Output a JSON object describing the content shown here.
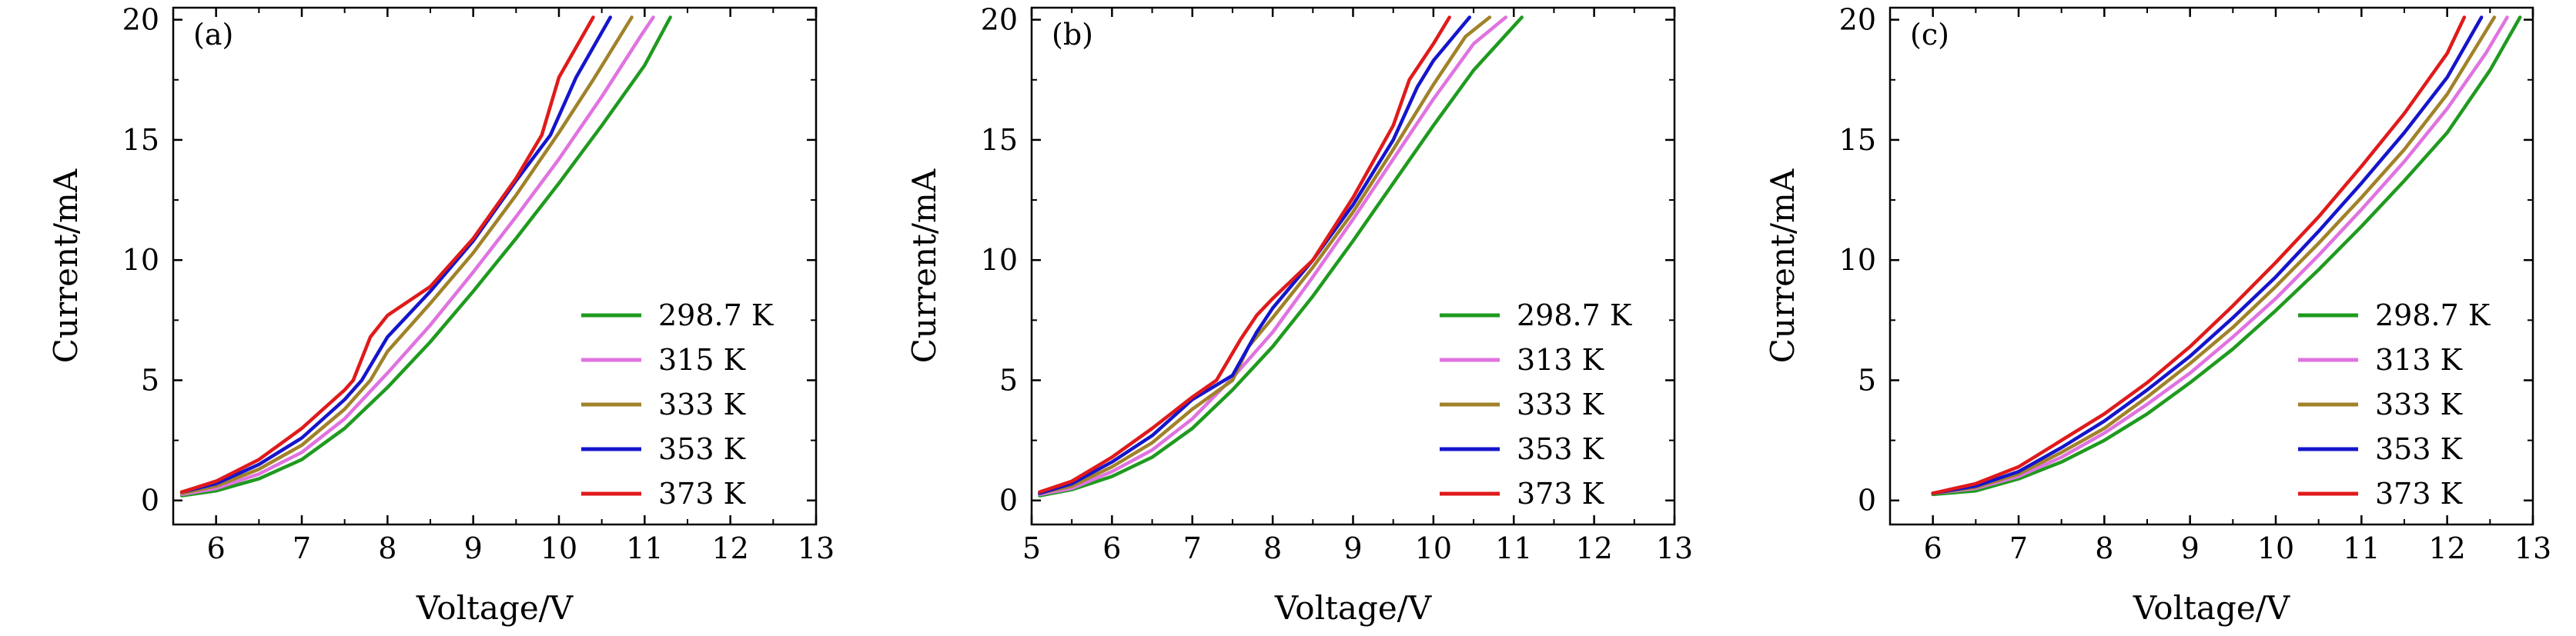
{
  "chart_data": [
    {
      "type": "line",
      "panel_label": "(a)",
      "xlabel": "Voltage/V",
      "ylabel": "Current/mA",
      "xlim": [
        5.5,
        13
      ],
      "ylim": [
        -1,
        20.5
      ],
      "xticks": [
        "6",
        "7",
        "8",
        "9",
        "10",
        "11",
        "12",
        "13"
      ],
      "yticks": [
        "0",
        "5",
        "10",
        "15",
        "20"
      ],
      "legend_position": "lower-right",
      "series": [
        {
          "name": "298.7 K",
          "color": "#1f9a1f",
          "x": [
            5.6,
            6.0,
            6.5,
            7.0,
            7.5,
            8.0,
            8.5,
            9.0,
            9.5,
            10.0,
            10.5,
            11.0,
            11.3
          ],
          "y": [
            0.2,
            0.4,
            0.9,
            1.7,
            3.0,
            4.7,
            6.6,
            8.7,
            10.9,
            13.2,
            15.6,
            18.1,
            20.1
          ]
        },
        {
          "name": "315 K",
          "color": "#e073e0",
          "x": [
            5.6,
            6.0,
            6.5,
            7.0,
            7.5,
            8.0,
            8.5,
            9.0,
            9.5,
            10.0,
            10.5,
            10.95,
            11.1
          ],
          "y": [
            0.25,
            0.5,
            1.1,
            2.0,
            3.4,
            5.3,
            7.3,
            9.5,
            11.8,
            14.2,
            16.8,
            19.3,
            20.1
          ]
        },
        {
          "name": "333 K",
          "color": "#a0822a",
          "x": [
            5.6,
            6.0,
            6.5,
            7.0,
            7.5,
            7.8,
            8.0,
            8.5,
            9.0,
            9.5,
            10.0,
            10.4,
            10.85
          ],
          "y": [
            0.3,
            0.6,
            1.3,
            2.3,
            3.8,
            5.0,
            6.2,
            8.2,
            10.3,
            12.7,
            15.3,
            17.5,
            20.1
          ]
        },
        {
          "name": "353 K",
          "color": "#1515cc",
          "x": [
            5.6,
            6.0,
            6.5,
            7.0,
            7.5,
            7.7,
            8.0,
            8.5,
            9.0,
            9.5,
            9.9,
            10.2,
            10.6
          ],
          "y": [
            0.35,
            0.7,
            1.5,
            2.6,
            4.2,
            5.0,
            6.8,
            8.7,
            10.8,
            13.3,
            15.2,
            17.6,
            20.1
          ]
        },
        {
          "name": "373 K",
          "color": "#e01a1a",
          "x": [
            5.6,
            6.0,
            6.5,
            7.0,
            7.5,
            7.6,
            7.8,
            8.0,
            8.5,
            9.0,
            9.5,
            9.8,
            10.0,
            10.4
          ],
          "y": [
            0.35,
            0.8,
            1.7,
            3.0,
            4.6,
            5.0,
            6.8,
            7.7,
            8.9,
            10.9,
            13.4,
            15.2,
            17.6,
            20.1
          ]
        }
      ]
    },
    {
      "type": "line",
      "panel_label": "(b)",
      "xlabel": "Voltage/V",
      "ylabel": "Current/mA",
      "xlim": [
        5,
        13
      ],
      "ylim": [
        -1,
        20.5
      ],
      "xticks": [
        "5",
        "6",
        "7",
        "8",
        "9",
        "10",
        "11",
        "12",
        "13"
      ],
      "yticks": [
        "0",
        "5",
        "10",
        "15",
        "20"
      ],
      "legend_position": "lower-right",
      "series": [
        {
          "name": "298.7 K",
          "color": "#1f9a1f",
          "x": [
            5.1,
            5.5,
            6.0,
            6.5,
            7.0,
            7.5,
            8.0,
            8.5,
            9.0,
            9.5,
            10.0,
            10.5,
            11.1
          ],
          "y": [
            0.2,
            0.45,
            1.0,
            1.8,
            3.0,
            4.6,
            6.4,
            8.5,
            10.8,
            13.2,
            15.6,
            17.9,
            20.1
          ]
        },
        {
          "name": "313 K",
          "color": "#e073e0",
          "x": [
            5.1,
            5.5,
            6.0,
            6.5,
            7.0,
            7.5,
            8.0,
            8.5,
            9.0,
            9.5,
            10.0,
            10.5,
            10.9
          ],
          "y": [
            0.25,
            0.5,
            1.2,
            2.1,
            3.4,
            5.1,
            7.0,
            9.3,
            11.7,
            14.2,
            16.7,
            19.0,
            20.1
          ]
        },
        {
          "name": "333 K",
          "color": "#a0822a",
          "x": [
            5.1,
            5.5,
            6.0,
            6.5,
            7.0,
            7.5,
            7.7,
            8.0,
            8.5,
            9.0,
            9.5,
            10.0,
            10.4,
            10.7
          ],
          "y": [
            0.3,
            0.6,
            1.4,
            2.4,
            3.8,
            5.0,
            6.4,
            7.6,
            9.7,
            12.0,
            14.6,
            17.3,
            19.3,
            20.1
          ]
        },
        {
          "name": "353 K",
          "color": "#1515cc",
          "x": [
            5.1,
            5.5,
            6.0,
            6.5,
            7.0,
            7.5,
            7.8,
            8.0,
            8.5,
            9.0,
            9.5,
            9.8,
            10.0,
            10.45
          ],
          "y": [
            0.3,
            0.7,
            1.6,
            2.7,
            4.2,
            5.2,
            7.0,
            8.0,
            10.0,
            12.3,
            15.0,
            17.2,
            18.3,
            20.1
          ]
        },
        {
          "name": "373 K",
          "color": "#e01a1a",
          "x": [
            5.1,
            5.5,
            6.0,
            6.5,
            7.0,
            7.3,
            7.6,
            7.8,
            8.0,
            8.5,
            9.0,
            9.5,
            9.7,
            10.0,
            10.2
          ],
          "y": [
            0.35,
            0.8,
            1.8,
            3.0,
            4.3,
            5.0,
            6.7,
            7.7,
            8.4,
            10.0,
            12.6,
            15.6,
            17.5,
            19.0,
            20.1
          ]
        }
      ]
    },
    {
      "type": "line",
      "panel_label": "(c)",
      "xlabel": "Voltage/V",
      "ylabel": "Current/mA",
      "xlim": [
        5.5,
        13
      ],
      "ylim": [
        -1,
        20.5
      ],
      "xticks": [
        "6",
        "7",
        "8",
        "9",
        "10",
        "11",
        "12",
        "13"
      ],
      "yticks": [
        "0",
        "5",
        "10",
        "15",
        "20"
      ],
      "legend_position": "lower-right",
      "series": [
        {
          "name": "298.7 K",
          "color": "#1f9a1f",
          "x": [
            6.0,
            6.5,
            7.0,
            7.5,
            8.0,
            8.5,
            9.0,
            9.5,
            10.0,
            10.5,
            11.0,
            11.5,
            12.0,
            12.5,
            12.85
          ],
          "y": [
            0.25,
            0.4,
            0.9,
            1.6,
            2.5,
            3.6,
            4.9,
            6.3,
            7.9,
            9.6,
            11.4,
            13.3,
            15.3,
            17.9,
            20.1
          ]
        },
        {
          "name": "313 K",
          "color": "#e073e0",
          "x": [
            6.0,
            6.5,
            7.0,
            7.5,
            8.0,
            8.5,
            9.0,
            9.5,
            10.0,
            10.5,
            11.0,
            11.5,
            12.0,
            12.45,
            12.7
          ],
          "y": [
            0.3,
            0.5,
            1.0,
            1.8,
            2.8,
            4.0,
            5.3,
            6.8,
            8.4,
            10.2,
            12.1,
            14.1,
            16.3,
            18.6,
            20.1
          ]
        },
        {
          "name": "333 K",
          "color": "#a0822a",
          "x": [
            6.0,
            6.5,
            7.0,
            7.5,
            8.0,
            8.5,
            9.0,
            9.5,
            10.0,
            10.5,
            11.0,
            11.5,
            12.0,
            12.55
          ],
          "y": [
            0.3,
            0.55,
            1.1,
            2.0,
            3.0,
            4.3,
            5.7,
            7.2,
            8.9,
            10.7,
            12.6,
            14.6,
            16.9,
            20.1
          ]
        },
        {
          "name": "353 K",
          "color": "#1515cc",
          "x": [
            6.0,
            6.5,
            7.0,
            7.5,
            8.0,
            8.5,
            9.0,
            9.5,
            10.0,
            10.5,
            11.0,
            11.5,
            12.0,
            12.4
          ],
          "y": [
            0.3,
            0.6,
            1.2,
            2.2,
            3.3,
            4.6,
            6.0,
            7.6,
            9.3,
            11.2,
            13.2,
            15.3,
            17.6,
            20.1
          ]
        },
        {
          "name": "373 K",
          "color": "#e01a1a",
          "x": [
            6.0,
            6.5,
            7.0,
            7.5,
            8.0,
            8.5,
            9.0,
            9.5,
            10.0,
            10.5,
            11.0,
            11.5,
            12.0,
            12.2
          ],
          "y": [
            0.3,
            0.7,
            1.4,
            2.5,
            3.6,
            4.9,
            6.4,
            8.1,
            9.9,
            11.8,
            13.9,
            16.1,
            18.6,
            20.1
          ]
        }
      ]
    }
  ]
}
